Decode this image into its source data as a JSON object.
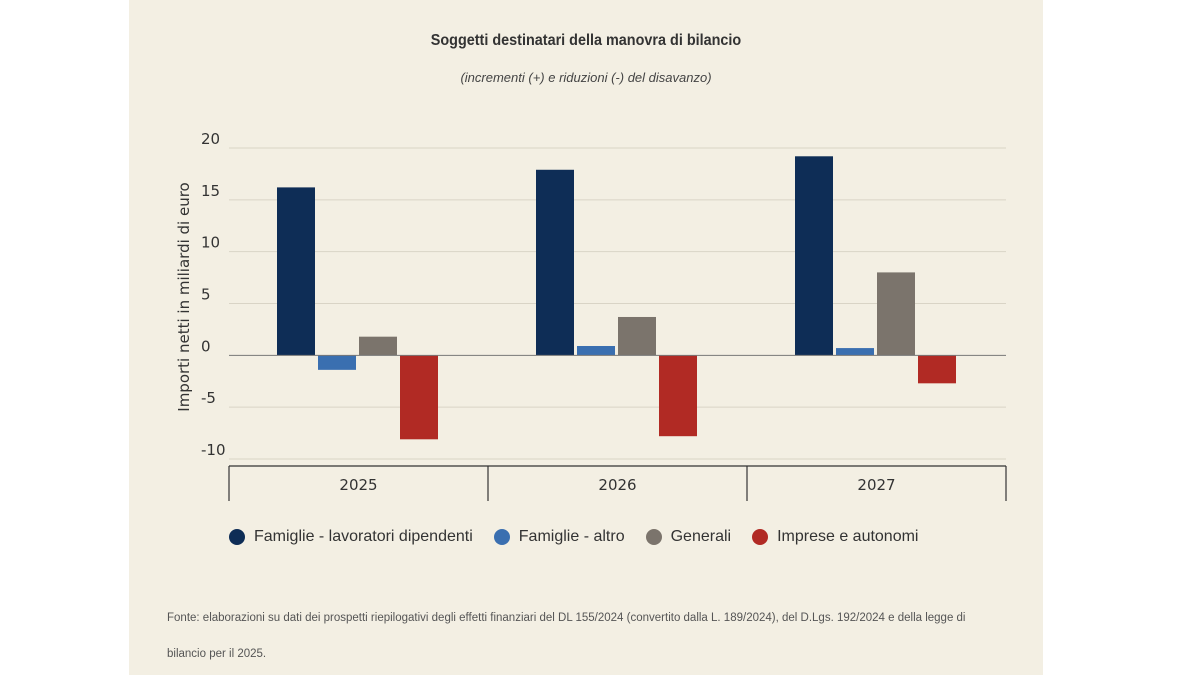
{
  "chart_data": {
    "type": "bar",
    "title": "Soggetti destinatari della manovra di bilancio",
    "subtitle": "(incrementi (+) e riduzioni (-) del disavanzo)",
    "ylabel": "Importi netti in miliardi di euro",
    "xlabel": "",
    "categories": [
      "2025",
      "2026",
      "2027"
    ],
    "ylim": [
      -10,
      20
    ],
    "yticks": [
      20,
      15,
      10,
      5,
      0,
      -5,
      -10
    ],
    "grid": true,
    "legend_position": "bottom",
    "series": [
      {
        "name": "Famiglie - lavoratori dipendenti",
        "color": "#0e2d56",
        "values": [
          16.2,
          17.9,
          19.2
        ]
      },
      {
        "name": "Famiglie - altro",
        "color": "#3a6fb0",
        "values": [
          -1.4,
          0.9,
          0.7
        ]
      },
      {
        "name": "Generali",
        "color": "#7b746c",
        "values": [
          1.8,
          3.7,
          8.0
        ]
      },
      {
        "name": "Imprese e autonomi",
        "color": "#b12a24",
        "values": [
          -8.1,
          -7.8,
          -2.7
        ]
      }
    ]
  },
  "source_note": "Fonte: elaborazioni su dati dei prospetti riepilogativi degli effetti finanziari del DL 155/2024 (convertito dalla L. 189/2024), del D.Lgs. 192/2024 e della legge di bilancio per il 2025."
}
